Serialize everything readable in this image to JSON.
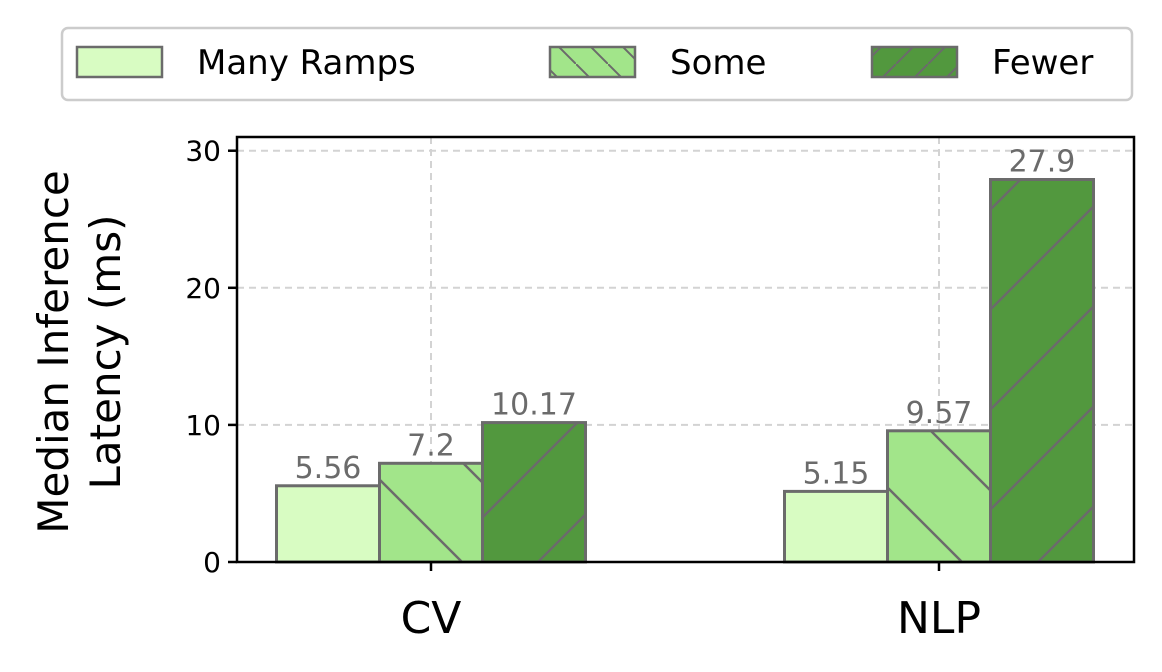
{
  "chart_data": {
    "type": "bar",
    "categories": [
      "CV",
      "NLP"
    ],
    "series": [
      {
        "name": "Many Ramps",
        "values": [
          5.56,
          5.15
        ],
        "labels": [
          "5.56",
          "5.15"
        ],
        "color": "#d8fcc2",
        "hatch": "none"
      },
      {
        "name": "Some",
        "values": [
          7.2,
          9.57
        ],
        "labels": [
          "7.2",
          "9.57"
        ],
        "color": "#a2e58a",
        "hatch": "backslash"
      },
      {
        "name": "Fewer",
        "values": [
          10.17,
          27.9
        ],
        "labels": [
          "10.17",
          "27.9"
        ],
        "color": "#52983e",
        "hatch": "slash"
      }
    ],
    "xlabel": "",
    "ylabel_lines": [
      "Median Inference",
      "Latency (ms)"
    ],
    "ylim": [
      0,
      31
    ],
    "yticks": [
      0,
      10,
      20,
      30
    ],
    "grid": true,
    "legend": "top",
    "edge_color": "#6b6b6b",
    "label_color": "#6b6b6b"
  }
}
